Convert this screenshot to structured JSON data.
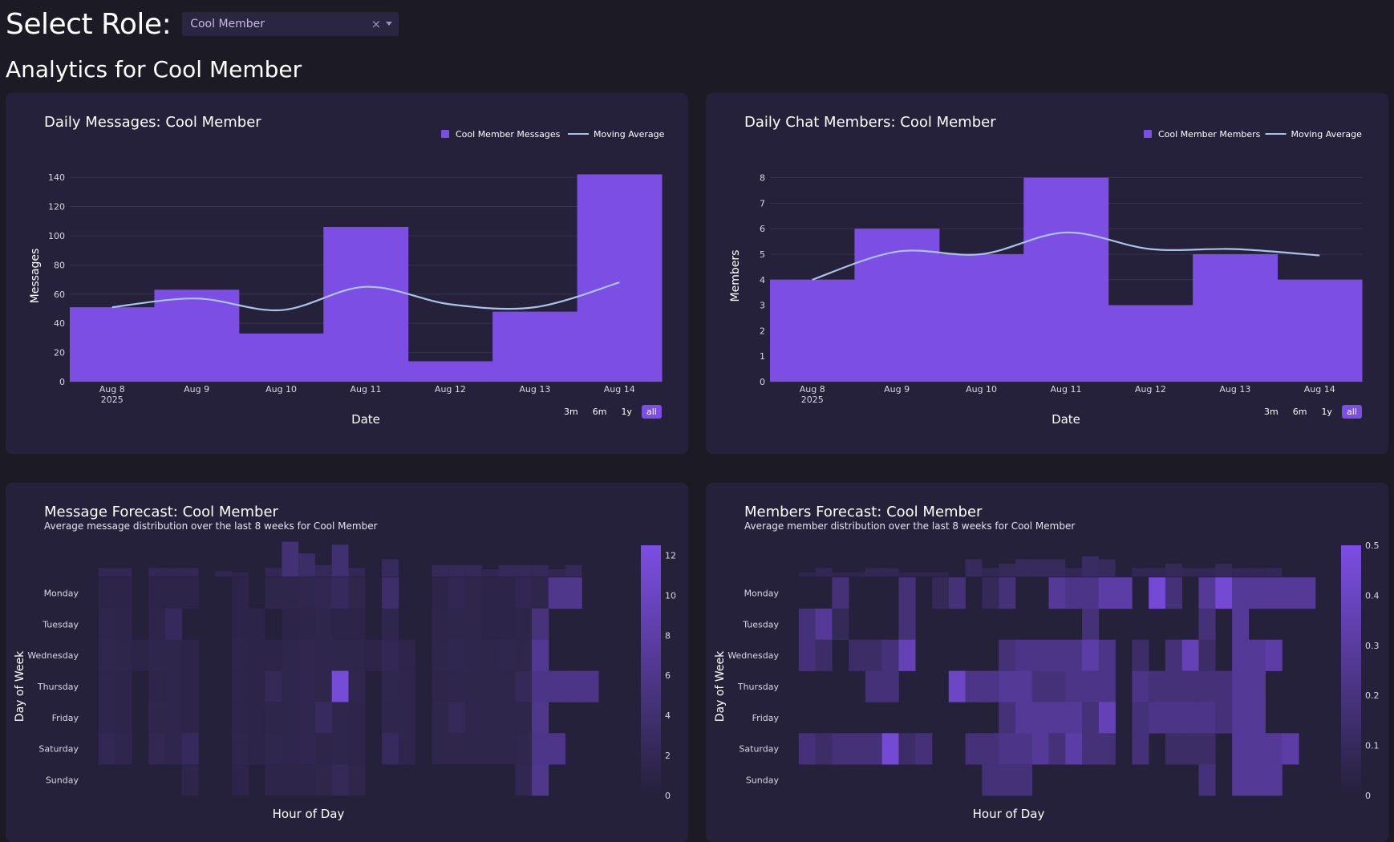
{
  "header": {
    "select_label": "Select Role:",
    "role_value": "Cool Member",
    "clear_glyph": "×",
    "page_title": "Analytics for Cool Member"
  },
  "colors": {
    "bar": "#7c4ee4",
    "ma_line": "#a8c4e6",
    "card": "#25213a",
    "grid": "#38334f",
    "axis_text": "#d9d6e6"
  },
  "range_buttons": [
    "3m",
    "6m",
    "1y",
    "all"
  ],
  "chart_data": [
    {
      "id": "messages",
      "type": "bar",
      "title": "Daily Messages: Cool Member",
      "xlabel": "Date",
      "ylabel": "Messages",
      "categories": [
        "Aug 8",
        "Aug 9",
        "Aug 10",
        "Aug 11",
        "Aug 12",
        "Aug 13",
        "Aug 14"
      ],
      "year_label": "2025",
      "series": [
        {
          "name": "Cool Member Messages",
          "type": "bar",
          "values": [
            51,
            63,
            33,
            106,
            14,
            48,
            142
          ]
        },
        {
          "name": "Moving Average",
          "type": "line",
          "values": [
            51,
            57,
            49,
            65,
            53,
            51,
            68
          ]
        }
      ],
      "yticks": [
        0,
        20,
        40,
        60,
        80,
        100,
        120,
        140
      ],
      "ylim": [
        0,
        145
      ]
    },
    {
      "id": "members",
      "type": "bar",
      "title": "Daily Chat Members: Cool Member",
      "xlabel": "Date",
      "ylabel": "Members",
      "categories": [
        "Aug 8",
        "Aug 9",
        "Aug 10",
        "Aug 11",
        "Aug 12",
        "Aug 13",
        "Aug 14"
      ],
      "year_label": "2025",
      "series": [
        {
          "name": "Cool Member Members",
          "type": "bar",
          "values": [
            4,
            6,
            5,
            8,
            3,
            5,
            4
          ]
        },
        {
          "name": "Moving Average",
          "type": "line",
          "values": [
            4,
            5.1,
            5,
            5.85,
            5.2,
            5.2,
            4.95
          ]
        }
      ],
      "yticks": [
        0,
        1,
        2,
        3,
        4,
        5,
        6,
        7,
        8
      ],
      "ylim": [
        0,
        8.3
      ]
    },
    {
      "id": "msg_heatmap",
      "type": "heatmap",
      "title": "Message Forecast: Cool Member",
      "subtitle": "Average message distribution over the last 8 weeks for Cool Member",
      "xlabel": "Hour of Day",
      "ylabel": "Day of Week",
      "days": [
        "Monday",
        "Tuesday",
        "Wednesday",
        "Thursday",
        "Friday",
        "Saturday",
        "Sunday"
      ],
      "zmax": 12.5,
      "colorbar_ticks": [
        0,
        2,
        4,
        6,
        8,
        10,
        12
      ],
      "values": [
        [
          0,
          0.1,
          0.1,
          0,
          0.1,
          0.1,
          0.1,
          0,
          0,
          0.1,
          0,
          0.3,
          0.3,
          0.6,
          0.8,
          1.6,
          0.3,
          0,
          2.6,
          0,
          0,
          0.1,
          0.8,
          0.3,
          0.1,
          0.1,
          0.8,
          0.4,
          5.5,
          5.5,
          0,
          0
        ],
        [
          0,
          0.4,
          0.2,
          0,
          0.2,
          1.6,
          0,
          0,
          0,
          0.1,
          0.1,
          0,
          0.1,
          0.2,
          0.3,
          0.1,
          0.1,
          0,
          0.4,
          0,
          0,
          0.2,
          0.3,
          0.3,
          0.1,
          0.1,
          0.2,
          4.2,
          0,
          0,
          0,
          0
        ],
        [
          0,
          0.6,
          0.3,
          0.1,
          0.4,
          0.3,
          0.1,
          0,
          0,
          0.2,
          0.1,
          0.1,
          0.5,
          0.6,
          0.4,
          0.3,
          0.3,
          0.1,
          1.1,
          0.2,
          0,
          0.3,
          0.7,
          0.4,
          0.3,
          0.6,
          0.3,
          6.0,
          0,
          0,
          0,
          0
        ],
        [
          0,
          0.4,
          0.2,
          0,
          0.2,
          0.5,
          0.1,
          0,
          0,
          0.2,
          0.1,
          1.2,
          0.5,
          0.7,
          0.3,
          11.5,
          0.6,
          0,
          0.6,
          0.5,
          0,
          0.2,
          0.5,
          0.3,
          0.3,
          0.3,
          1.2,
          5.0,
          5.0,
          5.0,
          5.0,
          0
        ],
        [
          0,
          0.4,
          0.2,
          0,
          0.3,
          0.4,
          0.1,
          0,
          0,
          0.2,
          0.1,
          0.3,
          0.5,
          0.6,
          1.8,
          0.5,
          0.2,
          0,
          0.4,
          0.4,
          0,
          0.3,
          1.4,
          0.4,
          0.3,
          0.3,
          0.3,
          5.5,
          0,
          0,
          0,
          0
        ],
        [
          0,
          1.0,
          0.4,
          0,
          0.9,
          0.5,
          1.6,
          0,
          0,
          0.3,
          0.1,
          0.6,
          0.4,
          0.7,
          0.2,
          0.5,
          0.2,
          0,
          1.8,
          0.4,
          0,
          0.3,
          0.3,
          0.3,
          0.3,
          0.3,
          0.6,
          5.2,
          5.2,
          0,
          0,
          0
        ],
        [
          0,
          0,
          0,
          0,
          0,
          0,
          0.2,
          0,
          0,
          0.1,
          0,
          0.2,
          0.2,
          0.2,
          0.3,
          1.2,
          0.3,
          0,
          0,
          0,
          0,
          0,
          0,
          0,
          0,
          0,
          0.8,
          5.5,
          0,
          0,
          0,
          0
        ]
      ],
      "marginal": [
        0,
        0.6,
        0.6,
        0,
        0.6,
        0.6,
        0.6,
        0,
        0.4,
        0.3,
        0,
        0.6,
        2.4,
        1.6,
        0.8,
        2.2,
        0.6,
        0,
        1.2,
        0,
        0,
        0.8,
        0.8,
        0.8,
        0.5,
        0.8,
        0.8,
        0.8,
        0.5,
        0.8,
        0,
        0
      ]
    },
    {
      "id": "mem_heatmap",
      "type": "heatmap",
      "title": "Members Forecast: Cool Member",
      "subtitle": "Average member distribution over the last 8 weeks for Cool Member",
      "xlabel": "Hour of Day",
      "ylabel": "Day of Week",
      "days": [
        "Monday",
        "Tuesday",
        "Wednesday",
        "Thursday",
        "Friday",
        "Saturday",
        "Sunday"
      ],
      "zmax": 0.5,
      "colorbar_ticks": [
        0,
        0.1,
        0.2,
        0.3,
        0.4,
        0.5
      ],
      "values": [
        [
          0,
          0,
          0,
          0.15,
          0,
          0,
          0,
          0.15,
          0,
          0.05,
          0.15,
          0,
          0.05,
          0.15,
          0,
          0,
          0.25,
          0.2,
          0.2,
          0.3,
          0.3,
          0,
          0.45,
          0.15,
          0,
          0.25,
          0.45,
          0.25,
          0.25,
          0.25,
          0.25,
          0.25
        ],
        [
          0,
          0.15,
          0.25,
          0.05,
          0,
          0,
          0,
          0.15,
          0,
          0,
          0,
          0,
          0,
          0,
          0,
          0,
          0,
          0,
          0.15,
          0,
          0,
          0,
          0,
          0,
          0,
          0.15,
          0,
          0.25,
          0,
          0,
          0,
          0
        ],
        [
          0,
          0.15,
          0.1,
          0,
          0.1,
          0.1,
          0.15,
          0.35,
          0,
          0,
          0,
          0,
          0,
          0.15,
          0.2,
          0.2,
          0.2,
          0.2,
          0.3,
          0.2,
          0,
          0.1,
          0,
          0.15,
          0.35,
          0.1,
          0,
          0.25,
          0.25,
          0.3,
          0,
          0
        ],
        [
          0,
          0,
          0,
          0,
          0,
          0.15,
          0.15,
          0,
          0,
          0,
          0.4,
          0.2,
          0.2,
          0.25,
          0.25,
          0.15,
          0.15,
          0.2,
          0.2,
          0.2,
          0,
          0.2,
          0.15,
          0.15,
          0.15,
          0.15,
          0.15,
          0.25,
          0.25,
          0,
          0,
          0
        ],
        [
          0,
          0,
          0,
          0,
          0,
          0,
          0,
          0,
          0,
          0,
          0,
          0,
          0,
          0.15,
          0.25,
          0.25,
          0.25,
          0.25,
          0.15,
          0.35,
          0,
          0.15,
          0.2,
          0.2,
          0.2,
          0.2,
          0.15,
          0.25,
          0.25,
          0,
          0,
          0
        ],
        [
          0,
          0.15,
          0.1,
          0.15,
          0.15,
          0.15,
          0.45,
          0.1,
          0.15,
          0,
          0,
          0.15,
          0.15,
          0.2,
          0.2,
          0.25,
          0.15,
          0.3,
          0.15,
          0.15,
          0,
          0.15,
          0,
          0.1,
          0.1,
          0.1,
          0,
          0.25,
          0.25,
          0.25,
          0.3,
          0
        ],
        [
          0,
          0,
          0,
          0,
          0,
          0,
          0,
          0,
          0,
          0,
          0,
          0,
          0.15,
          0.15,
          0.15,
          0,
          0,
          0,
          0,
          0,
          0,
          0,
          0,
          0,
          0,
          0.15,
          0,
          0.25,
          0.25,
          0.25,
          0,
          0
        ]
      ],
      "marginal": [
        0,
        0.3,
        0.6,
        0.3,
        0.3,
        0.6,
        0.6,
        0.3,
        0.3,
        0.3,
        0,
        1.2,
        0.6,
        0.9,
        1.2,
        1.2,
        1.2,
        0.6,
        1.4,
        1.2,
        0,
        0.6,
        0.6,
        0.9,
        0.6,
        0.6,
        0.9,
        0.6,
        0.6,
        0.6,
        0,
        0
      ]
    }
  ]
}
